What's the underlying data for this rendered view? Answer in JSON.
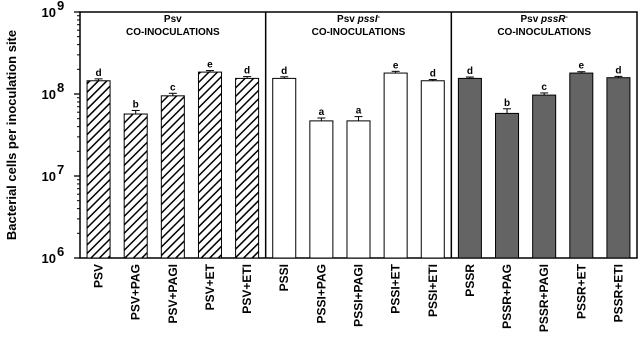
{
  "chart_data": {
    "type": "bar",
    "ylabel": "Bacterial cells per inoculation site",
    "yscale": "log",
    "ylim": [
      1000000,
      1000000000
    ],
    "yticks": [
      {
        "value": 1000000,
        "base": "10",
        "exp": "6"
      },
      {
        "value": 10000000,
        "base": "10",
        "exp": "7"
      },
      {
        "value": 100000000,
        "base": "10",
        "exp": "8"
      },
      {
        "value": 1000000000,
        "base": "10",
        "exp": "9"
      }
    ],
    "panels": [
      {
        "title_line1": [
          "Psv"
        ],
        "title_line2": "CO-INOCULATIONS",
        "fill": "hatch",
        "categories": [
          "PSV",
          "PSV+PAG",
          "PSV+PAGI",
          "PSV+ET",
          "PSV+ETI"
        ],
        "values": [
          145000000,
          57000000,
          95000000,
          185000000,
          155000000
        ],
        "errors": [
          8000000,
          6000000,
          7000000,
          8000000,
          8000000
        ],
        "sig": [
          "d",
          "b",
          "c",
          "e",
          "d"
        ]
      },
      {
        "title_line1": [
          "Psv ",
          "pssI",
          "-"
        ],
        "title_line2": "CO-INOCULATIONS",
        "fill": "#ffffff",
        "categories": [
          "PSSI",
          "PSSI+PAG",
          "PSSI+PAGI",
          "PSSI+ET",
          "PSSI+ETI"
        ],
        "values": [
          155000000,
          47000000,
          47000000,
          180000000,
          145000000
        ],
        "errors": [
          7000000,
          4000000,
          6000000,
          9000000,
          5000000
        ],
        "sig": [
          "d",
          "a",
          "a",
          "e",
          "d"
        ]
      },
      {
        "title_line1": [
          "Psv ",
          "pssR",
          "-"
        ],
        "title_line2": "CO-INOCULATIONS",
        "fill": "#646464",
        "categories": [
          "PSSR",
          "PSSR+PAG",
          "PSSR+PAGI",
          "PSSR+ET",
          "PSSR+ETI"
        ],
        "values": [
          155000000,
          58000000,
          97000000,
          180000000,
          158000000
        ],
        "errors": [
          6000000,
          8000000,
          6000000,
          7000000,
          6000000
        ],
        "sig": [
          "d",
          "b",
          "c",
          "e",
          "d"
        ]
      }
    ]
  }
}
